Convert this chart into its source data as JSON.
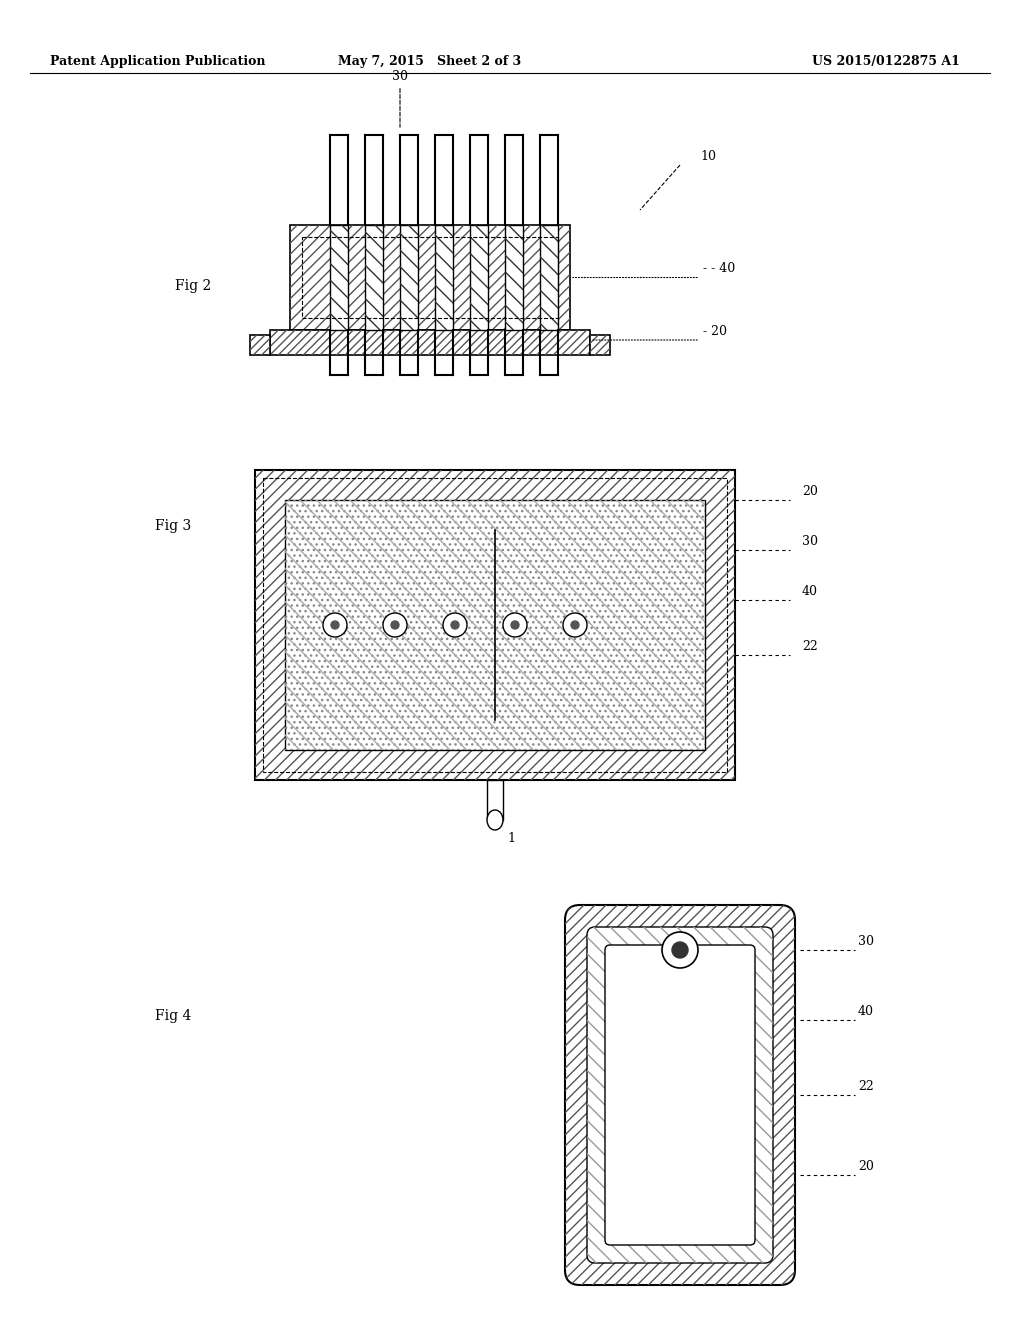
{
  "background_color": "#ffffff",
  "header_left": "Patent Application Publication",
  "header_mid": "May 7, 2015   Sheet 2 of 3",
  "header_right": "US 2015/0122875 A1",
  "fig2_label": "Fig 2",
  "fig3_label": "Fig 3",
  "fig4_label": "Fig 4",
  "hatch_color": "#555555",
  "line_color": "#000000",
  "annotation_color": "#000000"
}
